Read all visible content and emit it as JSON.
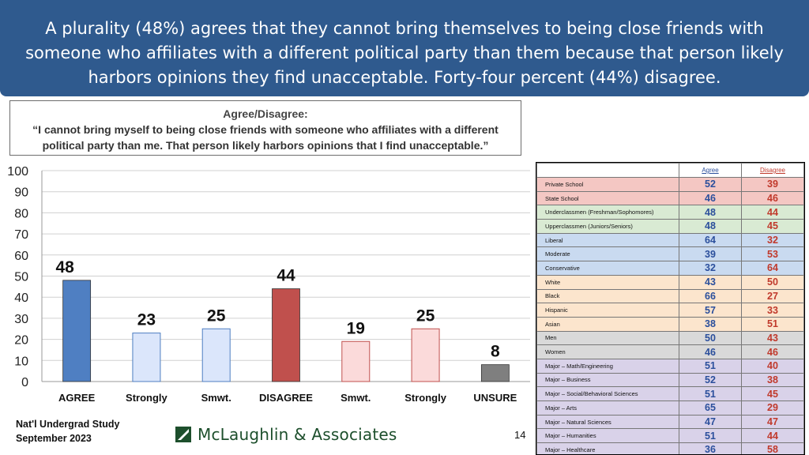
{
  "header": {
    "title": "A plurality (48%) agrees that they cannot bring themselves to being close friends with someone who affiliates with a different political party than them because that person likely harbors opinions they find unacceptable. Forty-four percent (44%) disagree."
  },
  "question": {
    "label": "Agree/Disagree:",
    "text": "“I cannot bring myself to being close friends with someone who affiliates with a different political party than me. That person likely harbors opinions that I find unacceptable.”"
  },
  "chart_data": {
    "type": "bar",
    "categories": [
      "AGREE",
      "Strongly",
      "Smwt.",
      "DISAGREE",
      "Smwt.",
      "Strongly",
      "UNSURE"
    ],
    "values": [
      48,
      23,
      25,
      44,
      19,
      25,
      8
    ],
    "ylim": [
      0,
      100
    ],
    "yticks": [
      0,
      10,
      20,
      30,
      40,
      50,
      60,
      70,
      80,
      90,
      100
    ],
    "grid": true,
    "colors": {
      "agree": "#4f7fc2",
      "agree_sub": "#dbe6fb",
      "disagree": "#c0504d",
      "disagree_sub": "#fbdada",
      "unsure": "#7f7f7f"
    },
    "bar_styles": [
      "agree",
      "agree_sub",
      "agree_sub",
      "disagree",
      "disagree_sub",
      "disagree_sub",
      "unsure"
    ]
  },
  "table": {
    "col_agree": "Agree",
    "col_disagree": "Disagree",
    "rows": [
      {
        "label": "Private School",
        "agree": 52,
        "disagree": 39,
        "color": "#f4c7c3"
      },
      {
        "label": "State School",
        "agree": 46,
        "disagree": 46,
        "color": "#f4c7c3"
      },
      {
        "label": "Underclassmen (Freshman/Sophomores)",
        "agree": 48,
        "disagree": 44,
        "color": "#d9ead3"
      },
      {
        "label": "Upperclassmen (Juniors/Seniors)",
        "agree": 48,
        "disagree": 45,
        "color": "#d9ead3"
      },
      {
        "label": "Liberal",
        "agree": 64,
        "disagree": 32,
        "color": "#c9daf0"
      },
      {
        "label": "Moderate",
        "agree": 39,
        "disagree": 53,
        "color": "#c9daf0"
      },
      {
        "label": "Conservative",
        "agree": 32,
        "disagree": 64,
        "color": "#c9daf0"
      },
      {
        "label": "White",
        "agree": 43,
        "disagree": 50,
        "color": "#fce5cd"
      },
      {
        "label": "Black",
        "agree": 66,
        "disagree": 27,
        "color": "#fce5cd"
      },
      {
        "label": "Hispanic",
        "agree": 57,
        "disagree": 33,
        "color": "#fce5cd"
      },
      {
        "label": "Asian",
        "agree": 38,
        "disagree": 51,
        "color": "#fce5cd"
      },
      {
        "label": "Men",
        "agree": 50,
        "disagree": 43,
        "color": "#d9d9d9"
      },
      {
        "label": "Women",
        "agree": 46,
        "disagree": 46,
        "color": "#d9d9d9"
      },
      {
        "label": "Major – Math/Engineering",
        "agree": 51,
        "disagree": 40,
        "color": "#d9d2e9"
      },
      {
        "label": "Major – Business",
        "agree": 52,
        "disagree": 38,
        "color": "#d9d2e9"
      },
      {
        "label": "Major – Social/Behavioral Sciences",
        "agree": 51,
        "disagree": 45,
        "color": "#d9d2e9"
      },
      {
        "label": "Major – Arts",
        "agree": 65,
        "disagree": 29,
        "color": "#d9d2e9"
      },
      {
        "label": "Major – Natural Sciences",
        "agree": 47,
        "disagree": 47,
        "color": "#d9d2e9"
      },
      {
        "label": "Major – Humanities",
        "agree": 51,
        "disagree": 44,
        "color": "#d9d2e9"
      },
      {
        "label": "Major – Healthcare",
        "agree": 36,
        "disagree": 58,
        "color": "#d9d2e9"
      }
    ]
  },
  "footer": {
    "study": "Nat'l Undergrad Study",
    "date": "September 2023",
    "logo_text": "McLaughlin & Associates",
    "page": "14"
  }
}
